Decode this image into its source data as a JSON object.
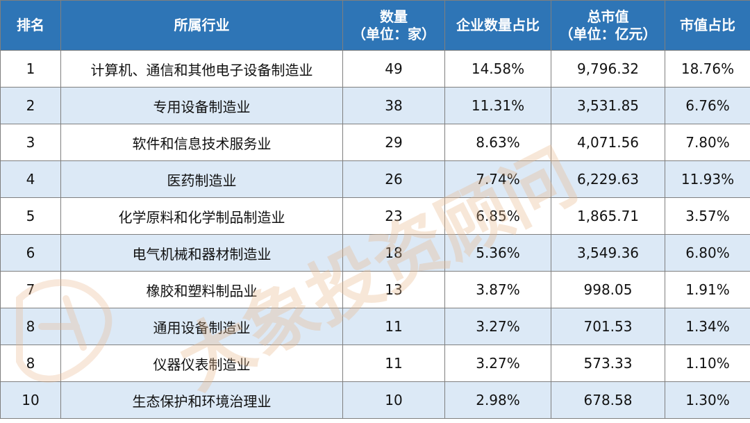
{
  "table": {
    "headers": {
      "rank": "排名",
      "industry": "所属行业",
      "count_line1": "数量",
      "count_line2": "（单位：家）",
      "count_share": "企业数量占比",
      "market_cap_line1": "总市值",
      "market_cap_line2": "（单位：亿元）",
      "cap_share": "市值占比"
    },
    "rows": [
      {
        "rank": "1",
        "industry": "计算机、通信和其他电子设备制造业",
        "count": "49",
        "count_share": "14.58%",
        "market_cap": "9,796.32",
        "cap_share": "18.76%"
      },
      {
        "rank": "2",
        "industry": "专用设备制造业",
        "count": "38",
        "count_share": "11.31%",
        "market_cap": "3,531.85",
        "cap_share": "6.76%"
      },
      {
        "rank": "3",
        "industry": "软件和信息技术服务业",
        "count": "29",
        "count_share": "8.63%",
        "market_cap": "4,071.56",
        "cap_share": "7.80%"
      },
      {
        "rank": "4",
        "industry": "医药制造业",
        "count": "26",
        "count_share": "7.74%",
        "market_cap": "6,229.63",
        "cap_share": "11.93%"
      },
      {
        "rank": "5",
        "industry": "化学原料和化学制品制造业",
        "count": "23",
        "count_share": "6.85%",
        "market_cap": "1,865.71",
        "cap_share": "3.57%"
      },
      {
        "rank": "6",
        "industry": "电气机械和器材制造业",
        "count": "18",
        "count_share": "5.36%",
        "market_cap": "3,549.36",
        "cap_share": "6.80%"
      },
      {
        "rank": "7",
        "industry": "橡胶和塑料制品业",
        "count": "13",
        "count_share": "3.87%",
        "market_cap": "998.05",
        "cap_share": "1.91%"
      },
      {
        "rank": "8",
        "industry": "通用设备制造业",
        "count": "11",
        "count_share": "3.27%",
        "market_cap": "701.53",
        "cap_share": "1.34%"
      },
      {
        "rank": "8",
        "industry": "仪器仪表制造业",
        "count": "11",
        "count_share": "3.27%",
        "market_cap": "573.33",
        "cap_share": "1.10%"
      },
      {
        "rank": "10",
        "industry": "生态保护和环境治理业",
        "count": "10",
        "count_share": "2.98%",
        "market_cap": "678.58",
        "cap_share": "1.30%"
      }
    ]
  },
  "watermark": {
    "text": "大象投资顾问",
    "color": "#e8b98e"
  },
  "colors": {
    "header_bg": "#2e75b6",
    "stripe_bg": "#dce9f6"
  }
}
